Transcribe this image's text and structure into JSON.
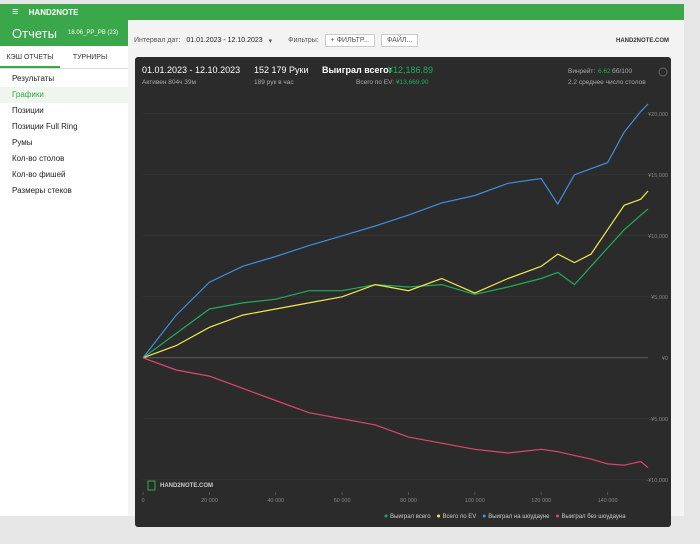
{
  "ui": {
    "app_name": "HAND2NOTE",
    "section": "Отчеты",
    "database": "18.06_PP_PB (23)",
    "tabs": [
      "КЭШ ОТЧЕТЫ",
      "ТУРНИРЫ"
    ],
    "menu": [
      "Результаты",
      "Графики",
      "Позиции",
      "Позиции Full Ring",
      "Румы",
      "Кол-во столов",
      "Кол-во фишей",
      "Размеры стеков"
    ],
    "date_label": "Интервал дат:",
    "date_range": "01.01.2023 - 12.10.2023",
    "filters_label": "Фильтры:",
    "filter_button": "ФИЛЬТР...",
    "file_button": "ФАЙЛ...",
    "logo": "HAND2NOTE.COM"
  },
  "chart_data": {
    "type": "line",
    "period": "01.01.2023 - 12.10.2023",
    "active": "Активен 804ч 39м",
    "hands": "152 179 Руки",
    "hands_per_hour": "189 рук в час",
    "won_label": "Выиграл всего:",
    "won_value": "¥12,186.89",
    "ev_label": "Всего по EV:",
    "ev_value": "¥13,669.90",
    "winrate_label": "Винрейт:",
    "winrate_value": "6.62",
    "winrate_unit": "бб/100",
    "tables": "2.2 среднее число столов",
    "watermark": "HAND2NOTE.COM",
    "x": [
      0,
      10000,
      20000,
      30000,
      40000,
      50000,
      60000,
      70000,
      80000,
      90000,
      100000,
      110000,
      120000,
      125000,
      130000,
      135000,
      140000,
      145000,
      150000,
      152179
    ],
    "series": [
      {
        "name": "Выиграл всего",
        "color": "#1fae5a",
        "values": [
          0,
          2000,
          4000,
          4500,
          4800,
          5500,
          5500,
          6000,
          5800,
          6000,
          5200,
          5800,
          6500,
          7000,
          6000,
          7500,
          9000,
          10500,
          11700,
          12187
        ]
      },
      {
        "name": "Всего по EV",
        "color": "#f2e94e",
        "values": [
          0,
          1000,
          2500,
          3500,
          4000,
          4500,
          5000,
          6000,
          5500,
          6500,
          5300,
          6500,
          7500,
          8500,
          7800,
          8500,
          10500,
          12500,
          13000,
          13670
        ]
      },
      {
        "name": "Выиграл на шоудауне",
        "color": "#3d8fe0",
        "values": [
          0,
          3500,
          6200,
          7500,
          8300,
          9200,
          10000,
          10800,
          11700,
          12700,
          13300,
          14300,
          14700,
          12600,
          15000,
          15500,
          16000,
          18500,
          20200,
          20800
        ]
      },
      {
        "name": "Выиграл без шоудауна",
        "color": "#e0466e",
        "values": [
          0,
          -1000,
          -1500,
          -2500,
          -3500,
          -4500,
          -5000,
          -5500,
          -6500,
          -7000,
          -7500,
          -7800,
          -7500,
          -7700,
          -8000,
          -8300,
          -8700,
          -8800,
          -8500,
          -9000
        ]
      }
    ],
    "xlim": [
      0,
      152179
    ],
    "xticks": [
      {
        "value": 0,
        "label": "0"
      },
      {
        "value": 20000,
        "label": "20 000"
      },
      {
        "value": 40000,
        "label": "40 000"
      },
      {
        "value": 60000,
        "label": "60 000"
      },
      {
        "value": 80000,
        "label": "80 000"
      },
      {
        "value": 100000,
        "label": "100 000"
      },
      {
        "value": 120000,
        "label": "120 000"
      },
      {
        "value": 140000,
        "label": "140 000"
      }
    ],
    "ylim": [
      -11000,
      24000
    ],
    "yticks": [
      {
        "value": -10000,
        "label": "-¥10,000"
      },
      {
        "value": -5000,
        "label": "-¥5,000"
      },
      {
        "value": 0,
        "label": "¥0"
      },
      {
        "value": 5000,
        "label": "¥5,000"
      },
      {
        "value": 10000,
        "label": "¥10,000"
      },
      {
        "value": 15000,
        "label": "¥15,000"
      },
      {
        "value": 20000,
        "label": "¥20,000"
      }
    ],
    "grid": true
  }
}
